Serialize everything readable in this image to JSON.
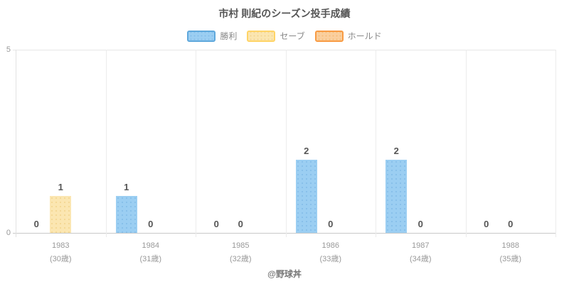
{
  "title": "市村 則紀のシーズン投手成績",
  "footer": "@野球丼",
  "chart_data": {
    "type": "bar",
    "title": "市村 則紀のシーズン投手成績",
    "categories": [
      {
        "year": "1983",
        "age": "(30歳)"
      },
      {
        "year": "1984",
        "age": "(31歳)"
      },
      {
        "year": "1985",
        "age": "(32歳)"
      },
      {
        "year": "1986",
        "age": "(33歳)"
      },
      {
        "year": "1987",
        "age": "(34歳)"
      },
      {
        "year": "1988",
        "age": "(35歳)"
      }
    ],
    "series": [
      {
        "name": "勝利",
        "values": [
          0,
          1,
          0,
          2,
          2,
          0
        ],
        "fill": "#9bcef2",
        "border": "#5fa8dc",
        "dot": "#86bfe9"
      },
      {
        "name": "セーブ",
        "values": [
          1,
          0,
          0,
          0,
          0,
          0
        ],
        "fill": "#fbe6b1",
        "border": "#ffd466",
        "dot": "#f3d793"
      },
      {
        "name": "ホールド",
        "values": [
          null,
          null,
          null,
          null,
          null,
          null
        ],
        "fill": "#facf9e",
        "border": "#f89b43",
        "dot": "#f6bd79"
      }
    ],
    "ylim": [
      0,
      5
    ],
    "yticks": [
      0,
      5
    ],
    "legend_position": "top",
    "grid": true
  }
}
